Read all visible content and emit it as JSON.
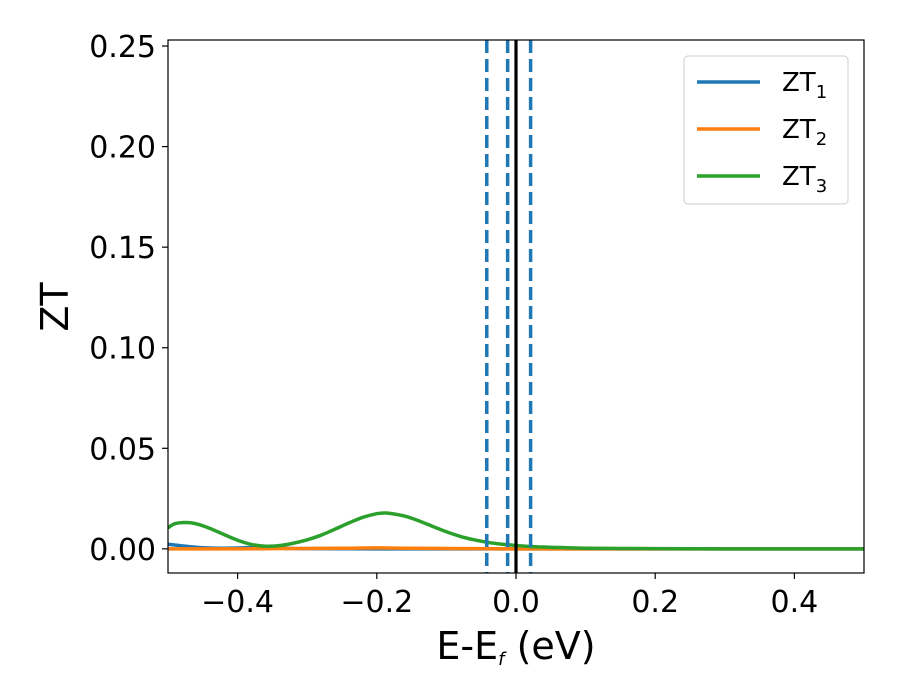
{
  "chart_data": {
    "type": "line",
    "title": "",
    "xlabel": {
      "main": "E-E",
      "sub": "f",
      "tail": " (eV)"
    },
    "ylabel": "ZT",
    "xlim": [
      -0.5,
      0.5
    ],
    "ylim": [
      -0.012,
      0.253
    ],
    "x_ticks": [
      -0.4,
      -0.2,
      0.0,
      0.2,
      0.4
    ],
    "x_tick_labels": [
      "−0.4",
      "−0.2",
      "0.0",
      "0.2",
      "0.4"
    ],
    "y_ticks": [
      0.0,
      0.05,
      0.1,
      0.15,
      0.2,
      0.25
    ],
    "y_tick_labels": [
      "0.00",
      "0.05",
      "0.10",
      "0.15",
      "0.20",
      "0.25"
    ],
    "grid": false,
    "legend_position": "top-right",
    "series": [
      {
        "name": "ZT",
        "sub": "1",
        "color": "#1f77b4",
        "x": [
          -0.5,
          -0.48,
          -0.46,
          -0.44,
          -0.42,
          -0.4,
          -0.38,
          -0.36,
          -0.34,
          -0.3,
          -0.2,
          0.0,
          0.5
        ],
        "y": [
          0.0023,
          0.0015,
          0.0008,
          0.0004,
          0.0003,
          0.0004,
          0.0007,
          0.0006,
          0.0003,
          0.0001,
          0.0,
          0.0,
          0.0
        ]
      },
      {
        "name": "ZT",
        "sub": "2",
        "color": "#ff7f0e",
        "x": [
          -0.5,
          -0.4,
          -0.35,
          -0.3,
          -0.25,
          -0.2,
          -0.15,
          -0.1,
          -0.05,
          0.0,
          0.1,
          0.5
        ],
        "y": [
          0.0,
          0.0,
          0.0001,
          0.0002,
          0.0003,
          0.0005,
          0.0003,
          0.0002,
          0.0001,
          0.0,
          0.0,
          0.0
        ]
      },
      {
        "name": "ZT",
        "sub": "3",
        "color": "#2ca02c",
        "x": [
          -0.5,
          -0.49,
          -0.475,
          -0.46,
          -0.44,
          -0.42,
          -0.4,
          -0.38,
          -0.36,
          -0.34,
          -0.32,
          -0.3,
          -0.28,
          -0.26,
          -0.24,
          -0.22,
          -0.2,
          -0.19,
          -0.18,
          -0.16,
          -0.14,
          -0.12,
          -0.1,
          -0.08,
          -0.06,
          -0.04,
          -0.02,
          0.0,
          0.02,
          0.04,
          0.06,
          0.08,
          0.1,
          0.15,
          0.2,
          0.3,
          0.4,
          0.5
        ],
        "y": [
          0.0105,
          0.0125,
          0.0131,
          0.0125,
          0.0102,
          0.0072,
          0.0043,
          0.0022,
          0.0013,
          0.0016,
          0.0028,
          0.0045,
          0.0068,
          0.0098,
          0.0129,
          0.0157,
          0.0175,
          0.0178,
          0.0176,
          0.0163,
          0.014,
          0.0112,
          0.0085,
          0.0062,
          0.0045,
          0.0032,
          0.0023,
          0.0017,
          0.0012,
          0.0009,
          0.0007,
          0.0005,
          0.0003,
          0.0002,
          0.0001,
          0.0,
          0.0,
          0.0
        ]
      }
    ],
    "vertical_lines": [
      {
        "x": -0.042,
        "style": "dashed",
        "color": "#1f77b4"
      },
      {
        "x": -0.012,
        "style": "dashed",
        "color": "#1f77b4"
      },
      {
        "x": 0.021,
        "style": "dashed",
        "color": "#1f77b4"
      },
      {
        "x": 0.0,
        "style": "solid",
        "color": "#000000"
      }
    ]
  }
}
